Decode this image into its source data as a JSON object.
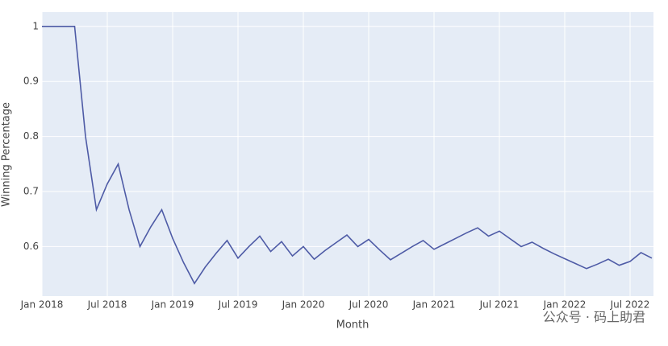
{
  "chart_data": {
    "type": "line",
    "x": [
      "2018-01",
      "2018-02",
      "2018-03",
      "2018-04",
      "2018-05",
      "2018-06",
      "2018-07",
      "2018-08",
      "2018-09",
      "2018-10",
      "2018-11",
      "2018-12",
      "2019-01",
      "2019-02",
      "2019-03",
      "2019-04",
      "2019-05",
      "2019-06",
      "2019-07",
      "2019-08",
      "2019-09",
      "2019-10",
      "2019-11",
      "2019-12",
      "2020-01",
      "2020-02",
      "2020-03",
      "2020-04",
      "2020-05",
      "2020-06",
      "2020-07",
      "2020-08",
      "2020-09",
      "2020-10",
      "2020-11",
      "2020-12",
      "2021-01",
      "2021-02",
      "2021-03",
      "2021-04",
      "2021-05",
      "2021-06",
      "2021-07",
      "2021-08",
      "2021-09",
      "2021-10",
      "2021-11",
      "2021-12",
      "2022-01",
      "2022-02",
      "2022-03",
      "2022-04",
      "2022-05",
      "2022-06",
      "2022-07",
      "2022-08",
      "2022-09"
    ],
    "series": [
      {
        "name": "Winning Percentage",
        "color": "#4e5ba6",
        "values": [
          1,
          1,
          1,
          1,
          0.8,
          0.667,
          0.714,
          0.75,
          0.667,
          0.6,
          0.636,
          0.667,
          0.615,
          0.571,
          0.533,
          0.563,
          0.588,
          0.611,
          0.579,
          0.6,
          0.619,
          0.591,
          0.609,
          0.583,
          0.6,
          0.577,
          0.593,
          0.607,
          0.621,
          0.6,
          0.613,
          0.594,
          0.576,
          0.588,
          0.6,
          0.611,
          0.595,
          0.605,
          0.615,
          0.625,
          0.634,
          0.619,
          0.628,
          0.614,
          0.6,
          0.608,
          0.597,
          0.587,
          0.578,
          0.569,
          0.56,
          0.568,
          0.577,
          0.566,
          0.573,
          0.589,
          0.579
        ]
      }
    ],
    "xlabel": "Month",
    "ylabel": "Winning Percentage",
    "ylim": [
      0.51,
      1.026
    ],
    "yticks": [
      0.6,
      0.7,
      0.8,
      0.9,
      1
    ],
    "xticks": [
      {
        "value": "2018-01",
        "label": "Jan 2018"
      },
      {
        "value": "2018-07",
        "label": "Jul 2018"
      },
      {
        "value": "2019-01",
        "label": "Jan 2019"
      },
      {
        "value": "2019-07",
        "label": "Jul 2019"
      },
      {
        "value": "2020-01",
        "label": "Jan 2020"
      },
      {
        "value": "2020-07",
        "label": "Jul 2020"
      },
      {
        "value": "2021-01",
        "label": "Jan 2021"
      },
      {
        "value": "2021-07",
        "label": "Jul 2021"
      },
      {
        "value": "2022-01",
        "label": "Jan 2022"
      },
      {
        "value": "2022-07",
        "label": "Jul 2022"
      }
    ],
    "grid": true,
    "plot_background": "#e5ecf6",
    "annotation": "公众号 · 码上助君"
  }
}
